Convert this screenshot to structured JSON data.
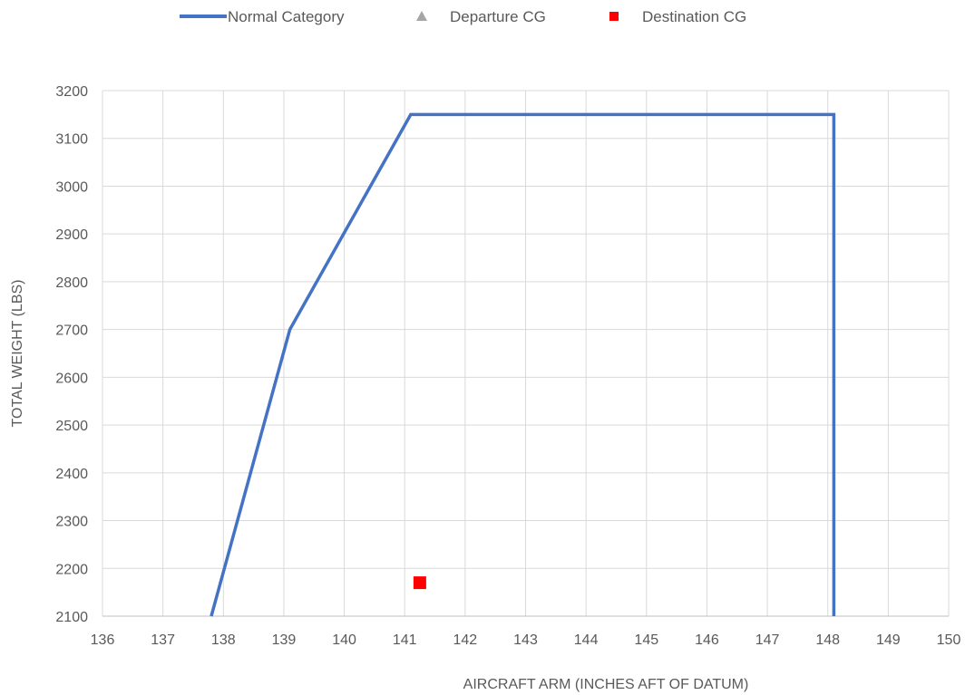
{
  "chart_data": {
    "type": "scatter",
    "title": "",
    "xlabel": "AIRCRAFT ARM (INCHES AFT OF DATUM)",
    "ylabel": "TOTAL WEIGHT (LBS)",
    "xlim": [
      136,
      150
    ],
    "ylim": [
      2100,
      3200
    ],
    "x_ticks": [
      136,
      137,
      138,
      139,
      140,
      141,
      142,
      143,
      144,
      145,
      146,
      147,
      148,
      149,
      150
    ],
    "y_ticks": [
      2100,
      2200,
      2300,
      2400,
      2500,
      2600,
      2700,
      2800,
      2900,
      3000,
      3100,
      3200
    ],
    "grid": true,
    "legend_position": "top",
    "series": [
      {
        "name": "Normal Category",
        "kind": "line",
        "color": "#4472c4",
        "points": [
          {
            "x": 137.8,
            "y": 2100
          },
          {
            "x": 139.1,
            "y": 2700
          },
          {
            "x": 141.1,
            "y": 3150
          },
          {
            "x": 148.1,
            "y": 3150
          },
          {
            "x": 148.1,
            "y": 2100
          }
        ]
      },
      {
        "name": "Departure CG",
        "kind": "marker",
        "marker": "triangle",
        "color": "#a5a5a5",
        "points": []
      },
      {
        "name": "Destination CG",
        "kind": "marker",
        "marker": "square",
        "color": "#ff0000",
        "points": [
          {
            "x": 141.25,
            "y": 2170
          }
        ]
      }
    ]
  }
}
